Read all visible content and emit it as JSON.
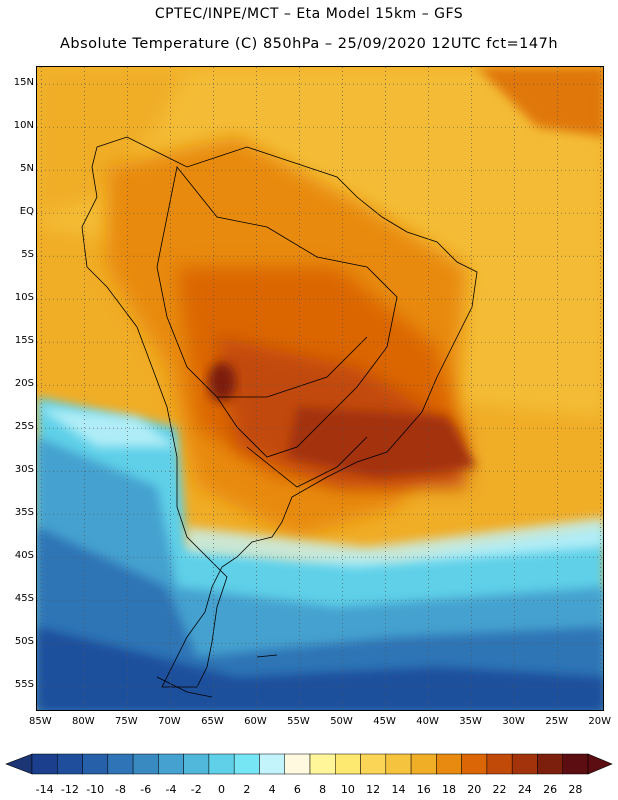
{
  "header": {
    "line1": "CPTEC/INPE/MCT –  Eta Model 15km – GFS",
    "line2": "Absolute Temperature (C) 850hPa – 25/09/2020 12UTC fct=147h"
  },
  "map": {
    "lat_labels": [
      "15N",
      "10N",
      "5N",
      "EQ",
      "5S",
      "10S",
      "15S",
      "20S",
      "25S",
      "30S",
      "35S",
      "40S",
      "45S",
      "50S",
      "55S"
    ],
    "lat_values": [
      15,
      10,
      5,
      0,
      -5,
      -10,
      -15,
      -20,
      -25,
      -30,
      -35,
      -40,
      -45,
      -50,
      -55
    ],
    "lon_labels": [
      "85W",
      "80W",
      "75W",
      "70W",
      "65W",
      "60W",
      "55W",
      "50W",
      "45W",
      "40W",
      "35W",
      "30W",
      "25W",
      "20W"
    ],
    "lon_values": [
      -85,
      -80,
      -75,
      -70,
      -65,
      -60,
      -55,
      -50,
      -45,
      -40,
      -35,
      -30,
      -25,
      -20
    ],
    "lon_range": [
      -85.5,
      -19.5
    ],
    "lat_range": [
      -58,
      17
    ]
  },
  "colorbar": {
    "labels": [
      "-14",
      "-12",
      "-10",
      "-8",
      "-6",
      "-4",
      "-2",
      "0",
      "2",
      "4",
      "6",
      "8",
      "10",
      "12",
      "14",
      "16",
      "18",
      "20",
      "22",
      "24",
      "26",
      "28"
    ],
    "colors": [
      "#1b3f8c",
      "#1f4f9c",
      "#2560a8",
      "#2f74b6",
      "#3a8ac2",
      "#45a1cf",
      "#51b8dc",
      "#5fd0e8",
      "#76e6f5",
      "#c4f4fb",
      "#fff9e0",
      "#fff69a",
      "#fde870",
      "#fbd656",
      "#f6c33e",
      "#f0ad26",
      "#e88a10",
      "#db6606",
      "#c24a08",
      "#a3330a",
      "#7d1f0d",
      "#5c0d12"
    ],
    "under_color": "#1b3575",
    "over_color": "#5c0d12"
  }
}
